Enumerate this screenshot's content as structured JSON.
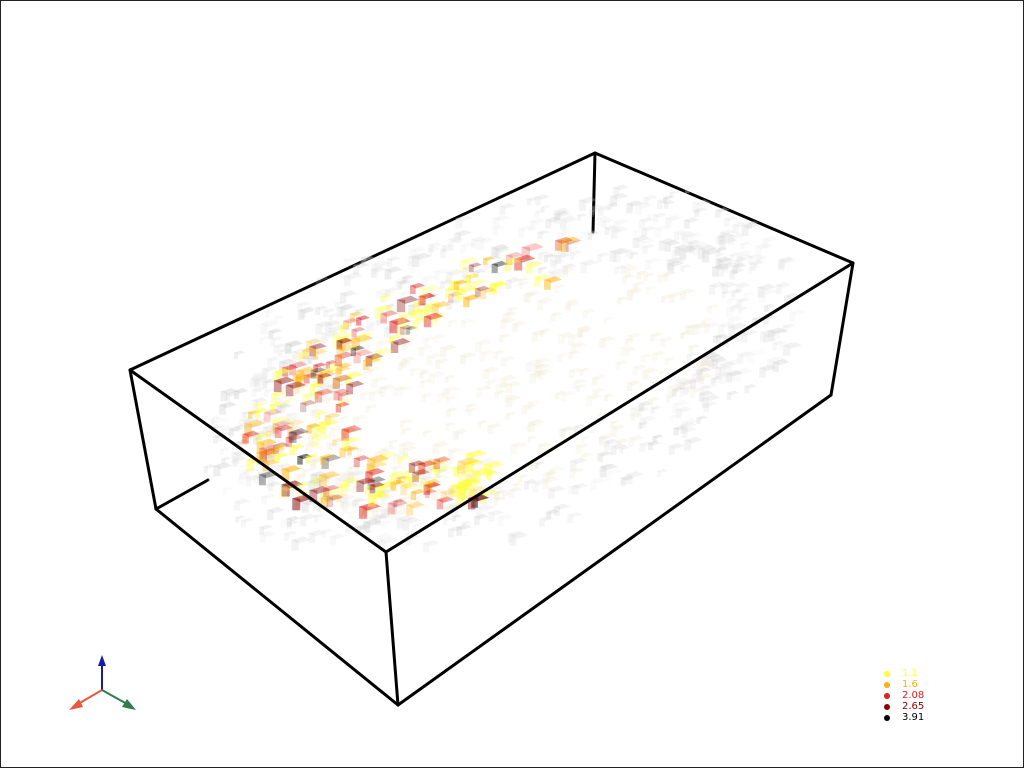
{
  "scene": {
    "box_color": "#000000",
    "voxel_glyph": "cube",
    "background": "#ffffff"
  },
  "orientation_axes": {
    "x_color": "#e8573e",
    "y_color": "#2e7d4f",
    "z_color": "#1a1aa8"
  },
  "legend": {
    "entries": [
      {
        "label": "1.1",
        "color": "#ffff33"
      },
      {
        "label": "1.6",
        "color": "#ffb000"
      },
      {
        "label": "2.08",
        "color": "#e02020"
      },
      {
        "label": "2.65",
        "color": "#8b0000"
      },
      {
        "label": "3.91",
        "color": "#000000"
      }
    ]
  }
}
